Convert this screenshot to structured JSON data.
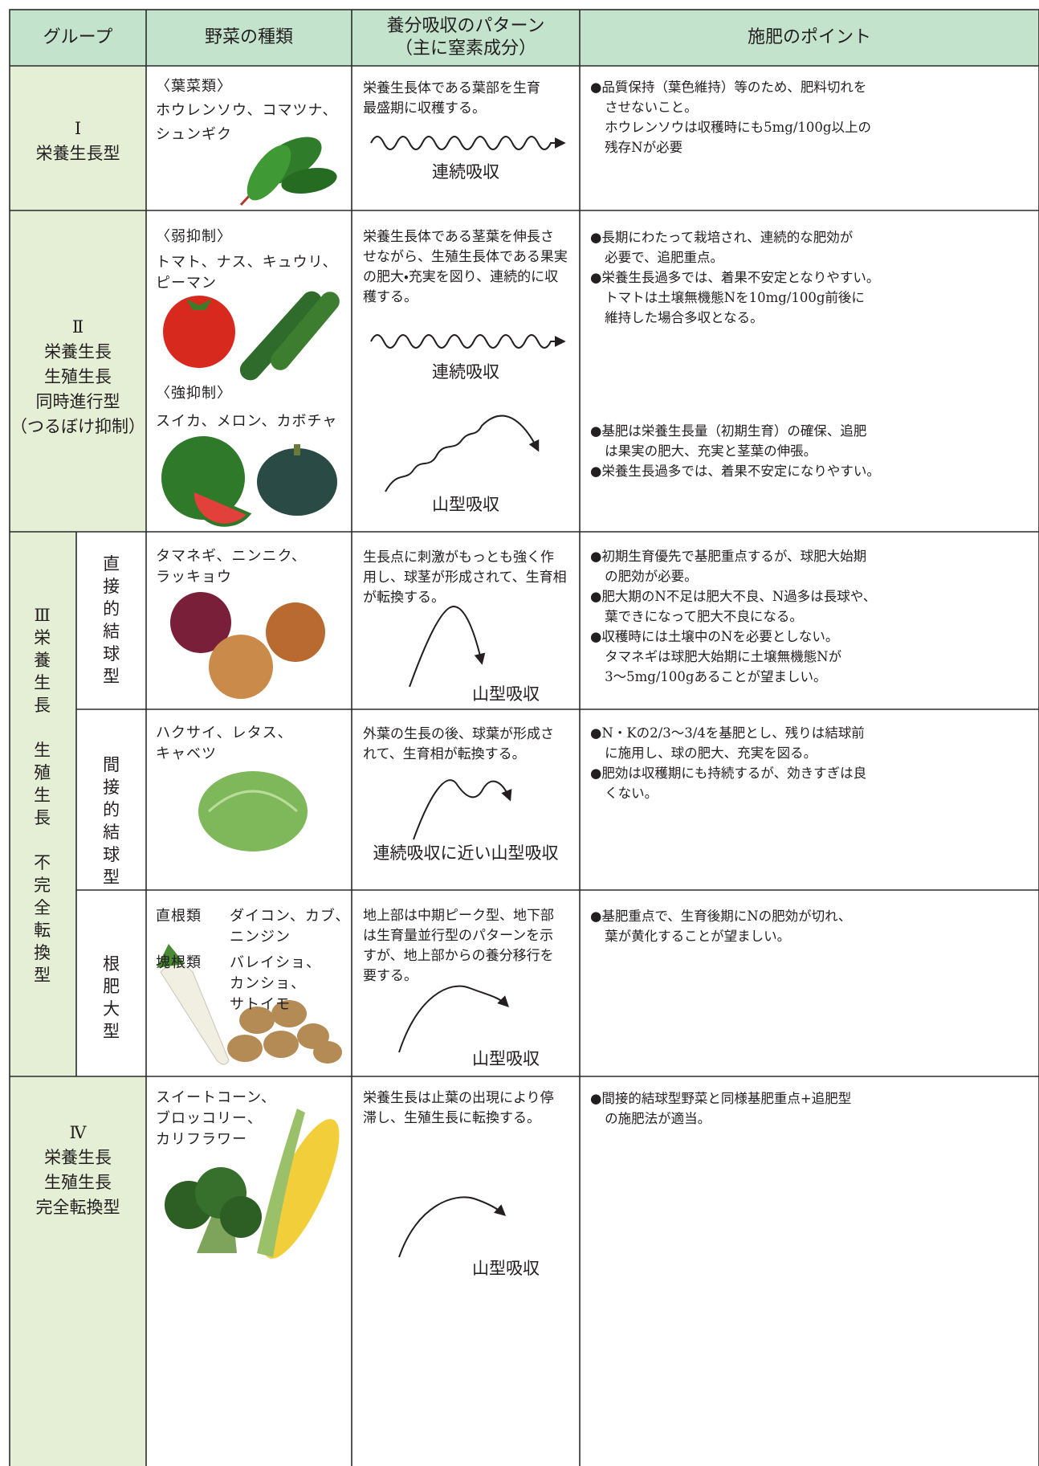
{
  "header": {
    "group": "グループ",
    "vegetables": "野菜の種類",
    "pattern": [
      "養分吸収のパターン",
      "（主に窒素成分）"
    ],
    "points": "施肥のポイント"
  },
  "rows": [
    {
      "group": [
        "Ⅰ",
        "栄養生長型"
      ],
      "vegetables": [
        "〈葉菜類〉",
        "ホウレンソウ、コマツナ、",
        "シュンギク"
      ],
      "pattern": {
        "description": [
          "栄養生長体である葉部を生育",
          "最盛期に収穫する。"
        ],
        "label": "連続吸収"
      },
      "points": [
        [
          "●品質保持（葉色維持）等のため、肥料切れを",
          "させないこと。",
          "ホウレンソウは収穫時にも5mg/100g以上の",
          "残存Nが必要"
        ]
      ]
    },
    {
      "group": [
        "Ⅱ",
        "栄養生長",
        "生殖生長",
        "同時進行型",
        "（つるぼけ抑制）"
      ],
      "vegetables": [
        {
          "heading": "〈弱抑制〉",
          "lines": [
            "トマト、ナス、キュウリ、",
            "ピーマン"
          ]
        },
        {
          "heading": "〈強抑制〉",
          "lines": [
            "スイカ、メロン、カボチャ"
          ]
        }
      ],
      "pattern": [
        {
          "description": [
            "栄養生長体である茎葉を伸長さ",
            "せながら、生殖生長体である果実",
            "の肥大・充実を図り、連続的に収",
            "穫する。"
          ],
          "label": "連続吸収"
        },
        {
          "label": "山型吸収"
        }
      ],
      "points": [
        [
          [
            "●長期にわたって栽培され、連続的な肥効が",
            "必要で、追肥重点。"
          ],
          [
            "●栄養生長過多では、着果不安定となりやすい。",
            "トマトは土壌無機態Nを10mg/100g前後に",
            "維持した場合多収となる。"
          ]
        ],
        [
          [
            "●基肥は栄養生長量（初期生育）の確保、追肥",
            "は果実の肥大、充実と茎葉の伸張。"
          ],
          [
            "●栄養生長過多では、着果不安定になりやすい。"
          ]
        ]
      ]
    },
    {
      "group": [
        "Ⅲ栄養生長",
        "生殖生長",
        "不完全転換型"
      ],
      "subgroups": [
        {
          "name": "直接的結球型",
          "vegetables": [
            "タマネギ、ニンニク、",
            "ラッキョウ"
          ],
          "pattern": {
            "description": [
              "生長点に刺激がもっとも強く作",
              "用し、球茎が形成されて、生育相",
              "が転換する。"
            ],
            "label": "山型吸収"
          },
          "points": [
            [
              "●初期生育優先で基肥重点するが、球肥大始期",
              "の肥効が必要。"
            ],
            [
              "●肥大期のN不足は肥大不良、N過多は長球や、",
              "葉できになって肥大不良になる。"
            ],
            [
              "●収穫時には土壌中のNを必要としない。",
              "タマネギは球肥大始期に土壌無機態Nが",
              "3〜5mg/100gあることが望ましい。"
            ]
          ]
        },
        {
          "name": "間接的結球型",
          "vegetables": [
            "ハクサイ、レタス、",
            "キャベツ"
          ],
          "pattern": {
            "description": [
              "外葉の生長の後、球葉が形成さ",
              "れて、生育相が転換する。"
            ],
            "label": "連続吸収に近い山型吸収"
          },
          "points": [
            [
              "●N・Kの2/3〜3/4を基肥とし、残りは結球前",
              "に施用し、球の肥大、充実を図る。"
            ],
            [
              "●肥効は収穫期にも持続するが、効きすぎは良",
              "くない。"
            ]
          ]
        },
        {
          "name": "根肥大型",
          "vegetables": [
            {
              "kind": "直根類",
              "names": [
                "ダイコン、カブ、",
                "ニンジン"
              ]
            },
            {
              "kind": "塊根類",
              "names": [
                "バレイショ、",
                "カンショ、",
                "サトイモ"
              ]
            }
          ],
          "pattern": {
            "description": [
              "地上部は中期ピーク型、地下部",
              "は生育量並行型のパターンを示",
              "すが、地上部からの養分移行を",
              "要する。"
            ],
            "label": "山型吸収"
          },
          "points": [
            [
              "●基肥重点で、生育後期にNの肥効が切れ、",
              "葉が黄化することが望ましい。"
            ]
          ]
        }
      ]
    },
    {
      "group": [
        "Ⅳ",
        "栄養生長",
        "生殖生長",
        "完全転換型"
      ],
      "vegetables": [
        "スイートコーン、",
        "ブロッコリー、",
        "カリフラワー"
      ],
      "pattern": {
        "description": [
          "栄養生長は止葉の出現により停",
          "滞し、生殖生長に転換する。"
        ],
        "label": "山型吸収"
      },
      "points": [
        [
          "●間接的結球型野菜と同様基肥重点+追肥型",
          "の施肥法が適当。"
        ]
      ]
    }
  ]
}
